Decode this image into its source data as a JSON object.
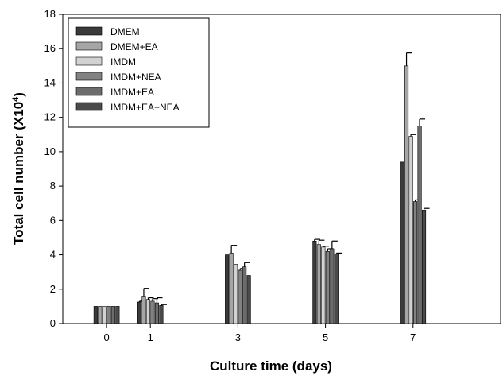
{
  "chart_data": {
    "type": "bar",
    "xlabel": "Culture time (days)",
    "ylabel_base": "Total cell number (X10",
    "ylabel_sup": "4",
    "ylabel_close": ")",
    "ylim": [
      0,
      18
    ],
    "yticks": [
      0,
      2,
      4,
      6,
      8,
      10,
      12,
      14,
      16,
      18
    ],
    "xlim": [
      -1,
      9
    ],
    "xticks": [
      0,
      1,
      3,
      5,
      7
    ],
    "x": [
      0,
      1,
      3,
      5,
      7
    ],
    "legend_position": "top-left",
    "grid": false,
    "series": [
      {
        "name": "DMEM",
        "color": "#3a3a3a",
        "values": [
          1.0,
          1.25,
          4.0,
          4.8,
          9.4
        ],
        "errors": [
          0.0,
          0.05,
          0.0,
          0.1,
          0.0
        ]
      },
      {
        "name": "DMEM+EA",
        "color": "#a6a6a6",
        "values": [
          1.0,
          1.6,
          4.1,
          4.6,
          15.0
        ],
        "errors": [
          0.0,
          0.45,
          0.45,
          0.25,
          0.75
        ]
      },
      {
        "name": "IMDM",
        "color": "#d2d2d2",
        "values": [
          1.0,
          1.4,
          3.45,
          4.45,
          10.9
        ],
        "errors": [
          0.0,
          0.1,
          0.0,
          0.05,
          0.1
        ]
      },
      {
        "name": "IMDM+NEA",
        "color": "#828282",
        "values": [
          1.0,
          1.3,
          3.1,
          4.2,
          7.1
        ],
        "errors": [
          0.0,
          0.15,
          0.1,
          0.15,
          0.1
        ]
      },
      {
        "name": "IMDM+EA",
        "color": "#6c6c6c",
        "values": [
          1.0,
          1.2,
          3.3,
          4.35,
          11.5
        ],
        "errors": [
          0.0,
          0.3,
          0.25,
          0.45,
          0.4
        ]
      },
      {
        "name": "IMDM+EA+NEA",
        "color": "#4a4a4a",
        "values": [
          1.0,
          1.05,
          2.8,
          4.05,
          6.6
        ],
        "errors": [
          0.0,
          0.05,
          0.0,
          0.05,
          0.1
        ]
      }
    ]
  }
}
